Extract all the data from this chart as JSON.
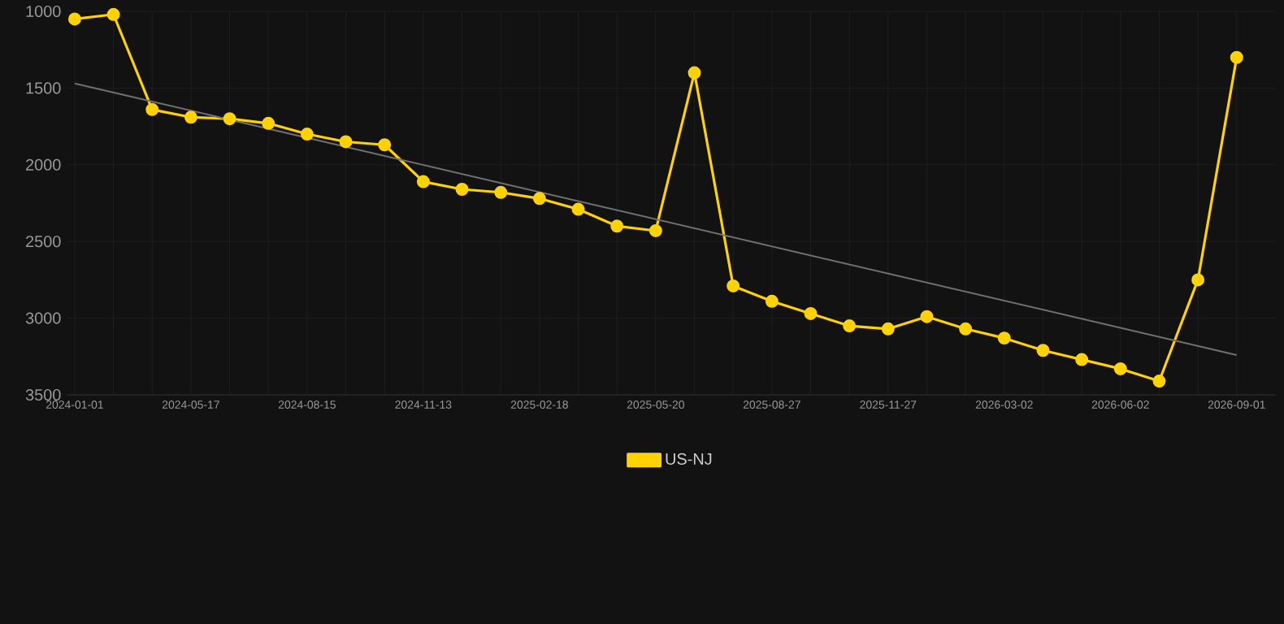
{
  "chart_data": {
    "type": "line",
    "categories": [
      "2024-01-01",
      null,
      null,
      "2024-05-17",
      null,
      null,
      "2024-08-15",
      null,
      null,
      "2024-11-13",
      null,
      null,
      "2025-02-18",
      null,
      null,
      "2025-05-20",
      null,
      null,
      "2025-08-27",
      null,
      null,
      "2025-11-27",
      null,
      null,
      "2026-03-02",
      null,
      null,
      "2026-06-02",
      null,
      null,
      "2026-09-01"
    ],
    "series": [
      {
        "name": "US-NJ",
        "color": "#ffd200",
        "marker": "circle",
        "values": [
          1050,
          1020,
          1640,
          1690,
          1700,
          1730,
          1800,
          1850,
          1870,
          2110,
          2160,
          2180,
          2220,
          2290,
          2400,
          2430,
          1400,
          2790,
          2890,
          2970,
          3050,
          3070,
          2990,
          3070,
          3130,
          3210,
          3270,
          3330,
          3410,
          2750,
          1300
        ]
      },
      {
        "type": "line",
        "color": "#707070",
        "marker": "none",
        "values": [
          1470,
          null,
          null,
          null,
          null,
          null,
          null,
          null,
          null,
          null,
          null,
          null,
          null,
          null,
          null,
          null,
          null,
          null,
          null,
          null,
          null,
          null,
          null,
          null,
          null,
          null,
          null,
          null,
          null,
          null,
          3240
        ]
      }
    ],
    "ylim": [
      3500,
      1000
    ],
    "yticks": [
      1000,
      1500,
      2000,
      2500,
      3000,
      3500
    ],
    "grid": true,
    "legend": "bottom"
  }
}
